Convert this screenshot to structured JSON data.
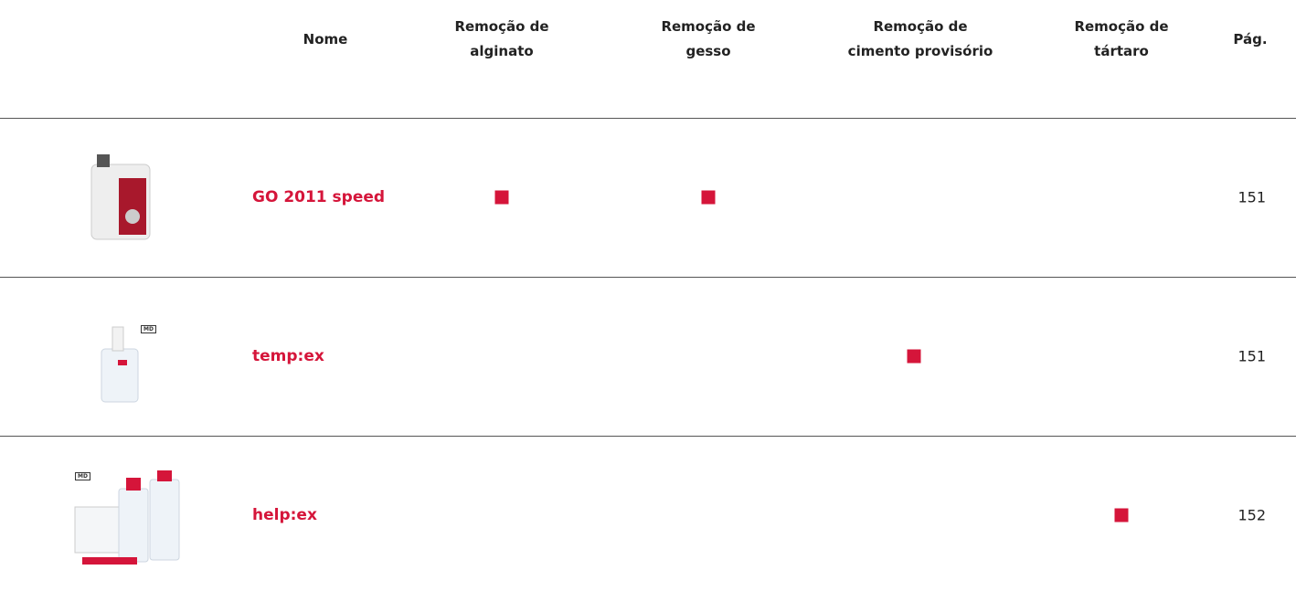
{
  "table": {
    "headers": [
      "Nome",
      "Remoção de\nalginato",
      "Remoção de\ngesso",
      "Remoção de\ncimento provisório",
      "Remoção de\ntártaro",
      "Pág."
    ],
    "rows": [
      {
        "name": "GO 2011 speed",
        "marks": [
          true,
          true,
          false,
          false
        ],
        "page": "151"
      },
      {
        "name": "temp:ex",
        "badge": "MD",
        "marks": [
          false,
          false,
          true,
          false
        ],
        "page": "151"
      },
      {
        "name": "help:ex",
        "badge": "MD",
        "marks": [
          false,
          false,
          false,
          true
        ],
        "page": "152"
      }
    ]
  }
}
